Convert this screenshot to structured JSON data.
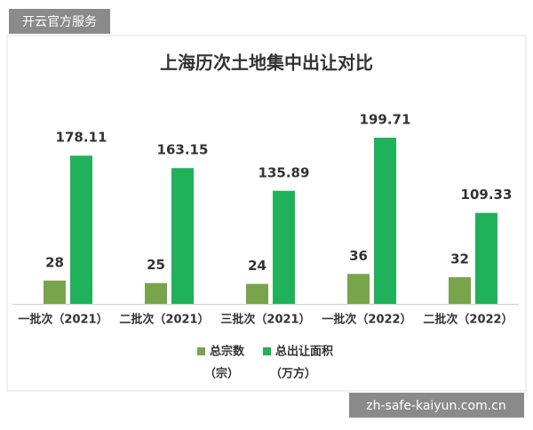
{
  "watermark": {
    "top": "开云官方服务",
    "bottom": "zh-safe-kaiyun.com.cn"
  },
  "chart_data": {
    "type": "bar",
    "title": "上海历次土地集中出让对比",
    "categories": [
      "一批次（2021）",
      "二批次（2021）",
      "三批次（2021）",
      "一批次（2022）",
      "二批次（2022）"
    ],
    "series": [
      {
        "name": "总宗数",
        "unit": "（宗）",
        "color": "#78a54a",
        "values": [
          28,
          25,
          24,
          36,
          32
        ]
      },
      {
        "name": "总出让面积",
        "unit": "（万方）",
        "color": "#1fb25a",
        "values": [
          178.11,
          163.15,
          135.89,
          199.71,
          109.33
        ]
      }
    ]
  }
}
